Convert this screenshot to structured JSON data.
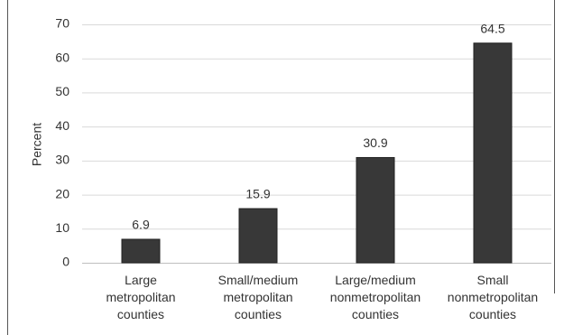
{
  "chart_data": {
    "type": "bar",
    "ylabel": "Percent",
    "categories": [
      "Large metropolitan counties",
      "Small/medium metropolitan counties",
      "Large/medium nonmetropolitan counties",
      "Small nonmetropolitan counties"
    ],
    "values": [
      6.9,
      15.9,
      30.9,
      64.5
    ],
    "color": "#383838",
    "ylim": [
      0,
      70
    ],
    "yticks": [
      0,
      10,
      20,
      30,
      40,
      50,
      60,
      70
    ],
    "grid": true
  }
}
